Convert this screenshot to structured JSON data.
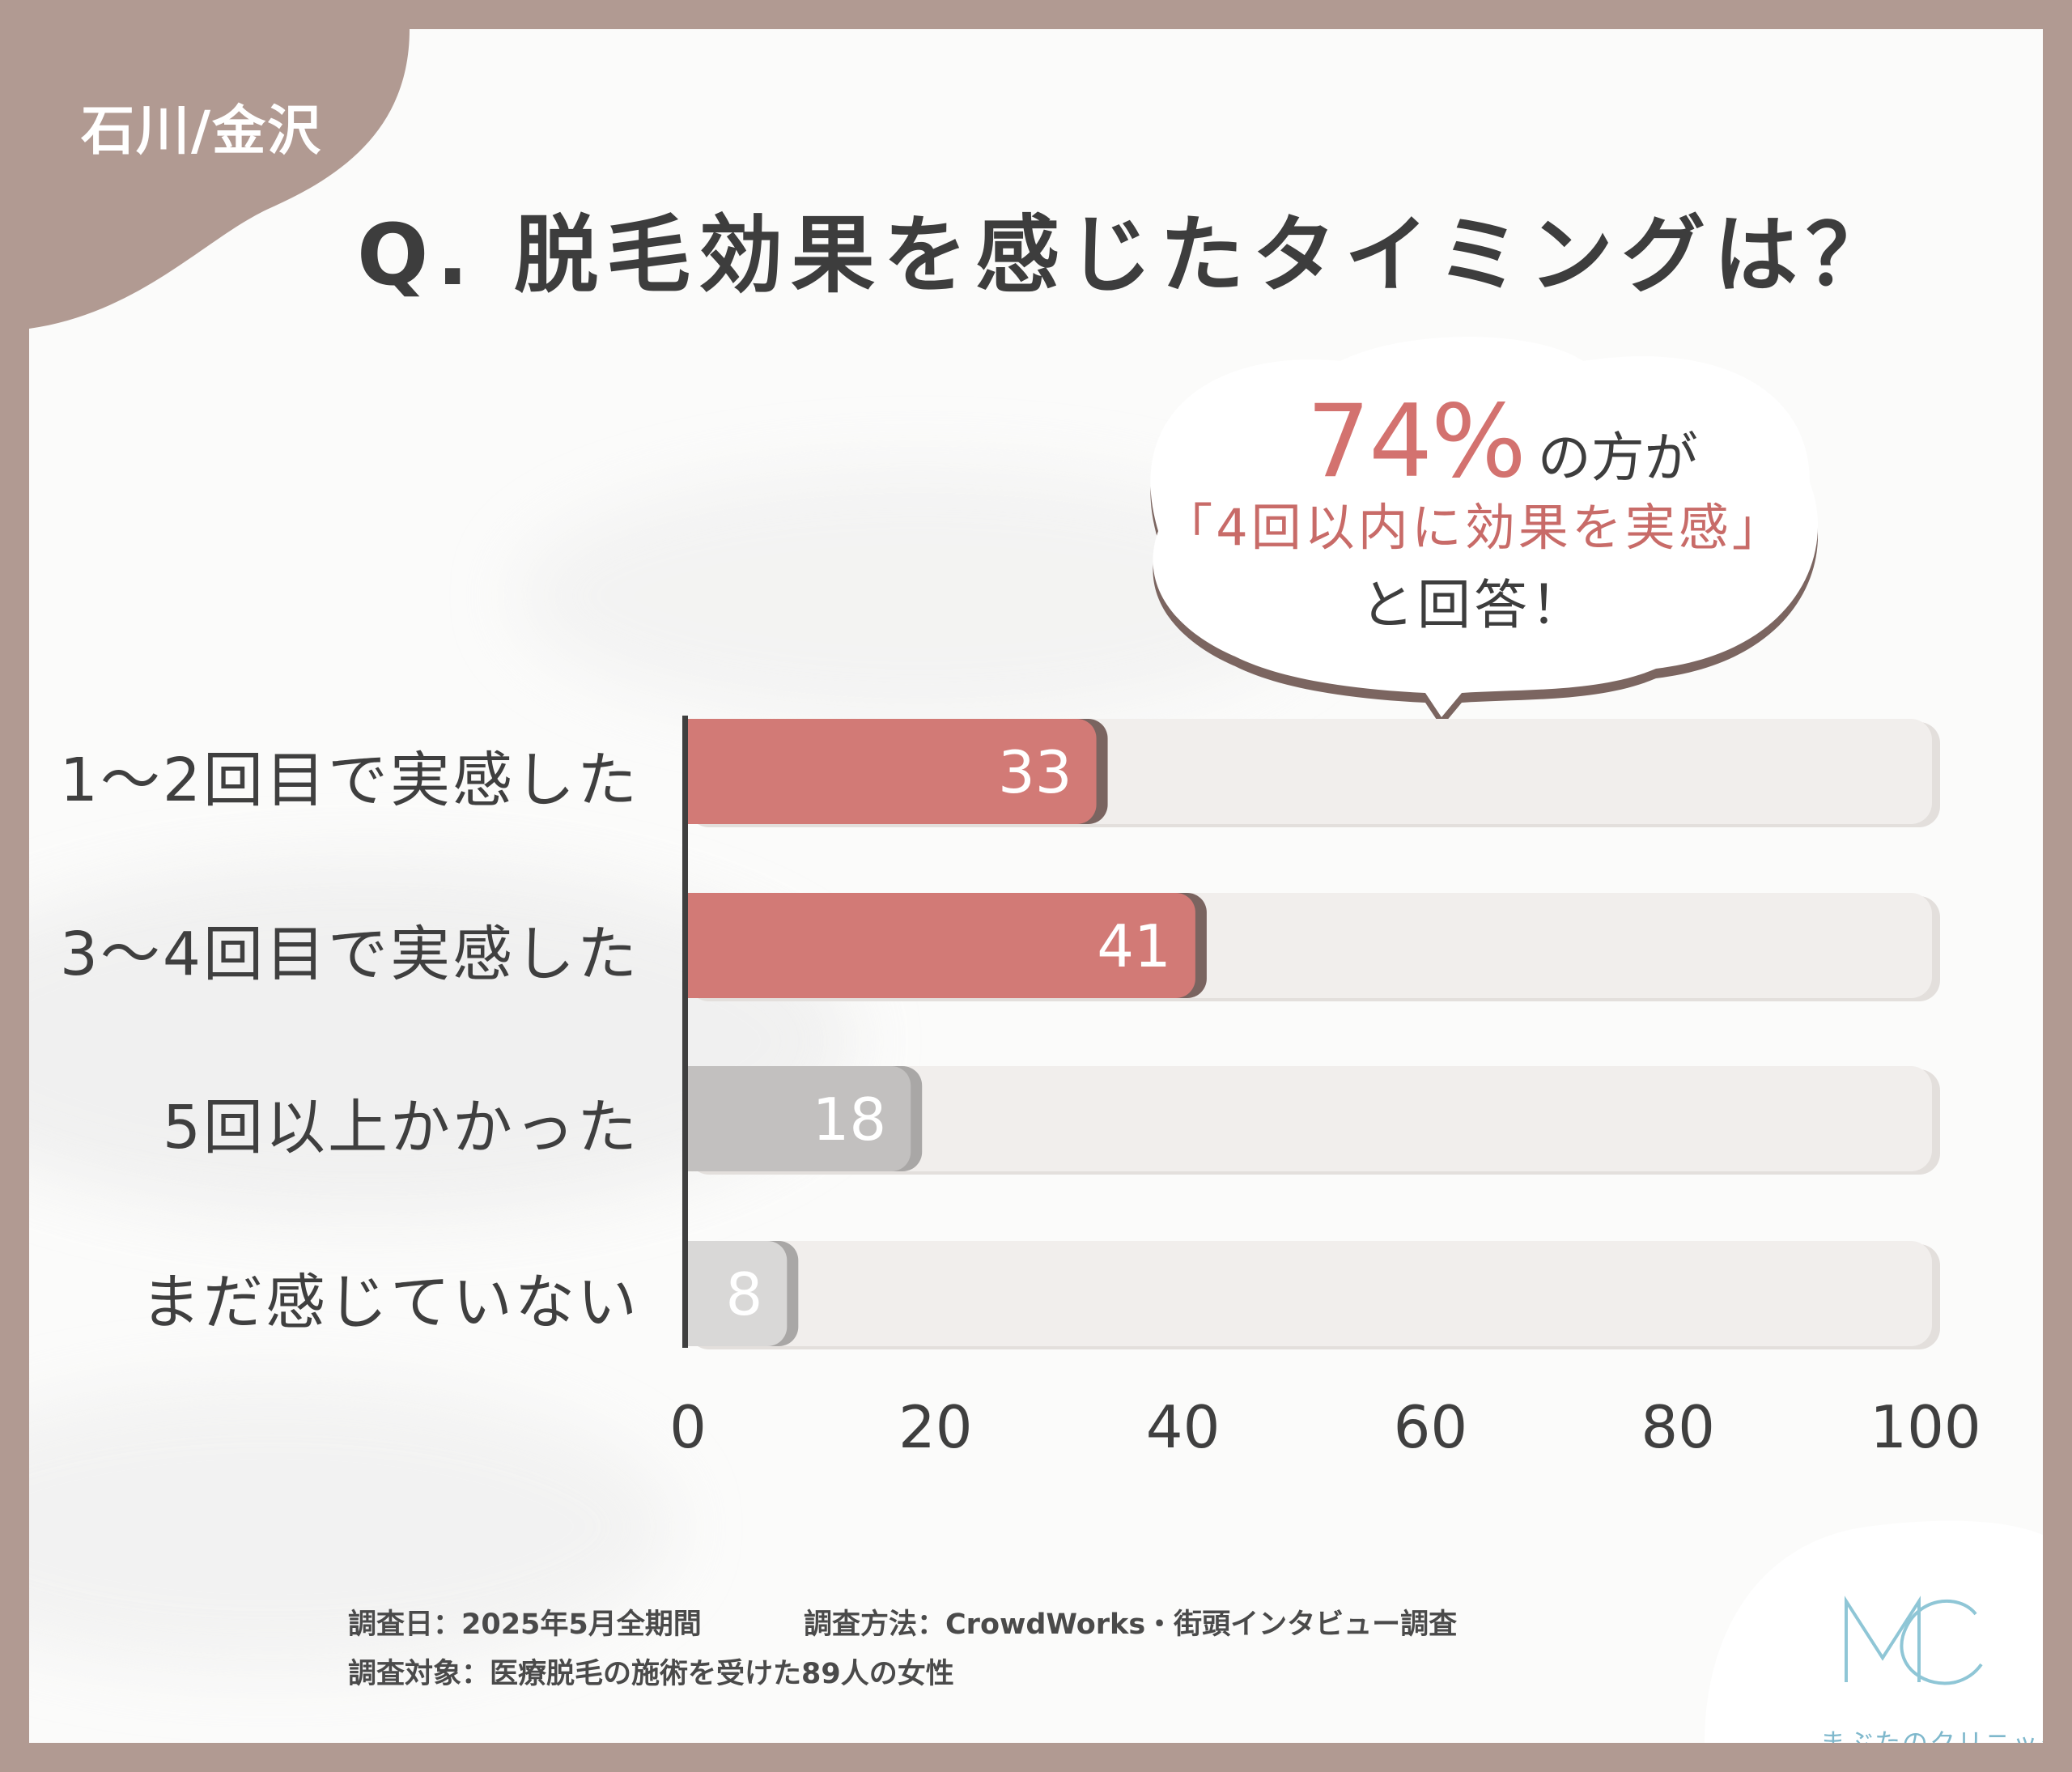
{
  "region": "石川/金沢",
  "title": "Q. 脱毛効果を感じたタイミングは？",
  "callout": {
    "percent": "74%",
    "suffix": "の方が",
    "quote": "「4回以内に効果を実感」",
    "ending": "と回答！"
  },
  "chart_data": {
    "type": "bar",
    "orientation": "horizontal",
    "categories": [
      "1〜2回目で実感した",
      "3〜4回目で実感した",
      "5回以上かかった",
      "まだ感じていない"
    ],
    "values": [
      33,
      41,
      18,
      8
    ],
    "xlim": [
      0,
      100
    ],
    "xticks": [
      0,
      20,
      40,
      60,
      80,
      100
    ],
    "title": "Q. 脱毛効果を感じたタイミングは？",
    "xlabel": "",
    "ylabel": "",
    "colors": [
      "#d27a76",
      "#d27a76",
      "#c2c0bf",
      "#d9d8d7"
    ],
    "shadow_colors": [
      "#7a6460",
      "#7a6460",
      "#a9a7a6",
      "#a9a7a6"
    ],
    "track_color": "#f1eeec"
  },
  "footer": {
    "date": "調査日：2025年5月全期間",
    "method": "調査方法：CrowdWorks・街頭インタビュー調査",
    "target": "調査対象：医療脱毛の施術を受けた89人の女性"
  },
  "logo": {
    "mark": "MC",
    "name": "まぶたのクリニック",
    "color": "#8fc6d6"
  },
  "colors": {
    "frame": "#b19a92",
    "background": "#fbfbfa",
    "accent": "#d3726f",
    "text": "#3d3d3d"
  }
}
